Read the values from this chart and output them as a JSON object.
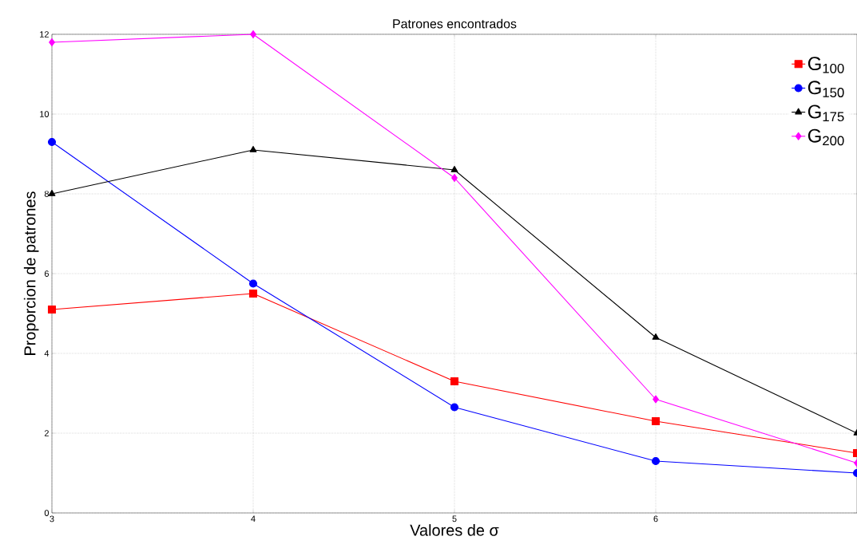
{
  "chart_data": {
    "type": "line",
    "title": "Patrones encontrados",
    "xlabel": "Valores de σ",
    "ylabel": "Proporcion de patrones",
    "x": [
      3,
      4,
      5,
      6,
      7
    ],
    "series": [
      {
        "name": "G$_{100}$",
        "color": "#ff0000",
        "marker": "square",
        "values": [
          5.1,
          5.5,
          3.3,
          2.3,
          1.5
        ]
      },
      {
        "name": "G$_{150}$",
        "color": "#0000ff",
        "marker": "circle",
        "values": [
          9.3,
          5.75,
          2.65,
          1.3,
          1.0
        ]
      },
      {
        "name": "G$_{175}$",
        "color": "#000000",
        "marker": "triangle",
        "values": [
          8.0,
          9.1,
          8.6,
          4.4,
          2.0
        ]
      },
      {
        "name": "G$_{200}$",
        "color": "#ff00ff",
        "marker": "diamond",
        "values": [
          11.8,
          12.0,
          8.4,
          2.85,
          1.25
        ]
      }
    ],
    "xlim": [
      3,
      7
    ],
    "xticks": [
      3,
      4,
      5,
      6
    ],
    "ylim": [
      0,
      12
    ],
    "yticks": [
      0,
      2,
      4,
      6,
      8,
      10,
      12
    ],
    "grid": true,
    "legend": "top right",
    "line_style": "solid"
  }
}
